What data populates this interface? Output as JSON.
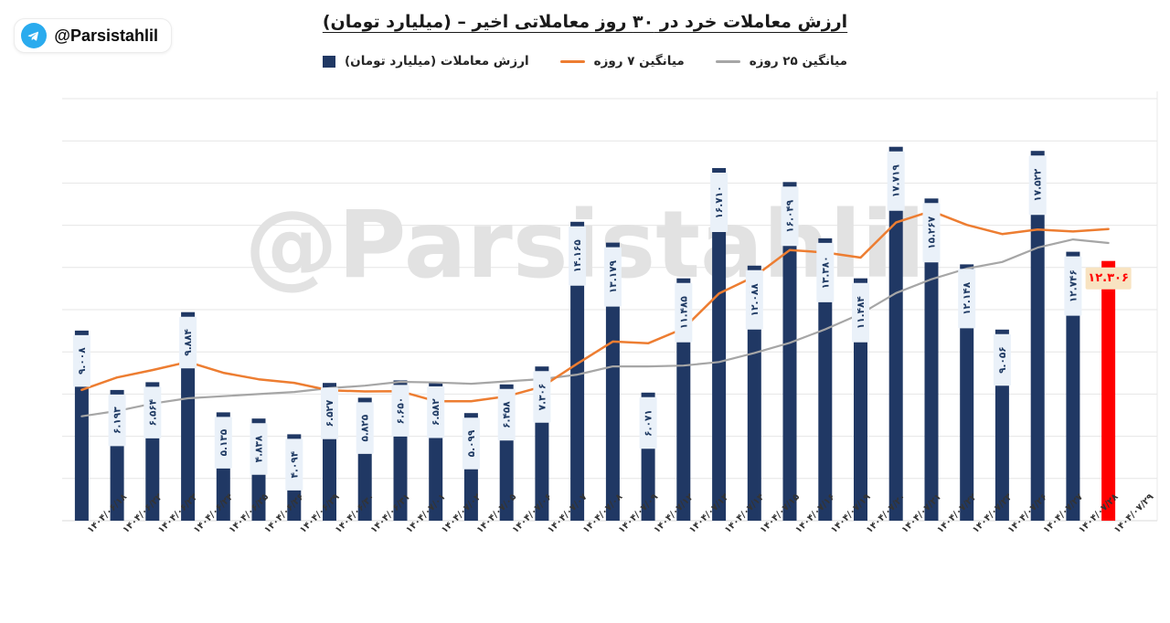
{
  "header": {
    "title": "ارزش معاملات خرد در ۳۰ روز معاملاتی اخیر – (میلیارد تومان)",
    "badge_handle": "@Parsistahlil"
  },
  "watermark": "@Parsistahlil",
  "legend": [
    {
      "label": "میانگین ۲۵ روزه",
      "marker": "line",
      "color": "#A6A6A6"
    },
    {
      "label": "میانگین ۷ روزه",
      "marker": "line",
      "color": "#ED7D31"
    },
    {
      "label": "ارزش معاملات (میلیارد تومان)",
      "marker": "square",
      "color": "#203864"
    }
  ],
  "chart_data": {
    "type": "bar",
    "title": "ارزش معاملات خرد در ۳۰ روز معاملاتی اخیر – (میلیارد تومان)",
    "xlabel": "",
    "ylabel": "",
    "ylim": [
      0,
      20000
    ],
    "grid_step": 2000,
    "grid": true,
    "legend_position": "top",
    "categories": [
      "۱۴۰۴/۰۶/۱۸",
      "۱۴۰۴/۰۶/۲۲",
      "۱۴۰۴/۰۶/۲۳",
      "۱۴۰۴/۰۶/۲۴",
      "۱۴۰۴/۰۶/۲۵",
      "۱۴۰۴/۰۶/۲۶",
      "۱۴۰۴/۰۶/۲۹",
      "۱۴۰۴/۰۶/۳۰",
      "۱۴۰۴/۰۶/۳۱",
      "۱۴۰۴/۰۷/۰۱",
      "۱۴۰۴/۰۷/۰۲",
      "۱۴۰۴/۰۷/۰۵",
      "۱۴۰۴/۰۷/۰۶",
      "۱۴۰۴/۰۷/۰۷",
      "۱۴۰۴/۰۷/۰۸",
      "۱۴۰۴/۰۷/۰۹",
      "۱۴۰۴/۰۷/۱۲",
      "۱۴۰۴/۰۷/۱۳",
      "۱۴۰۴/۰۷/۱۴",
      "۱۴۰۴/۰۷/۱۵",
      "۱۴۰۴/۰۷/۱۶",
      "۱۴۰۴/۰۷/۱۹",
      "۱۴۰۴/۰۷/۲۰",
      "۱۴۰۴/۰۷/۲۱",
      "۱۴۰۴/۰۷/۲۲",
      "۱۴۰۴/۰۷/۲۳",
      "۱۴۰۴/۰۷/۲۶",
      "۱۴۰۴/۰۷/۲۷",
      "۱۴۰۴/۰۷/۲۸",
      "۱۴۰۴/۰۷/۲۹"
    ],
    "series": [
      {
        "name": "ارزش معاملات (میلیارد تومان)",
        "type": "bar",
        "color": "#203864",
        "label_bg": "#EAF1F9",
        "label_color": "#1F3A63",
        "values": [
          9008,
          6193,
          6564,
          9884,
          5135,
          4838,
          4094,
          6527,
          5825,
          6650,
          6582,
          5099,
          6458,
          7306,
          14165,
          13179,
          6071,
          11485,
          16710,
          12088,
          16049,
          13380,
          11484,
          17719,
          15267,
          12148,
          9056,
          17522,
          12746,
          12306
        ],
        "labels": [
          "۹.۰۰۸",
          "۶.۱۹۳",
          "۶.۵۶۴",
          "۹.۸۸۴",
          "۵.۱۳۵",
          "۴.۸۳۸",
          "۴.۰۹۴",
          "۶.۵۲۷",
          "۵.۸۲۵",
          "۶.۶۵۰",
          "۶.۵۸۲",
          "۵.۰۹۹",
          "۶.۴۵۸",
          "۷.۳۰۶",
          "۱۴.۱۶۵",
          "۱۳.۱۷۹",
          "۶.۰۷۱",
          "۱۱.۴۸۵",
          "۱۶.۷۱۰",
          "۱۲.۰۸۸",
          "۱۶.۰۴۹",
          "۱۳.۳۸۰",
          "۱۱.۴۸۴",
          "۱۷.۷۱۹",
          "۱۵.۲۶۷",
          "۱۲.۱۴۸",
          "۹.۰۵۶",
          "۱۷.۵۲۲",
          "۱۲.۷۴۶",
          "۱۲.۳۰۶"
        ]
      },
      {
        "name": "میانگین ۷ روزه",
        "type": "line",
        "color": "#ED7D31",
        "values": [
          6200,
          6790,
          7140,
          7525,
          7010,
          6700,
          6531,
          6176,
          6124,
          6136,
          5664,
          5659,
          5891,
          6350,
          7441,
          8491,
          8409,
          9109,
          10768,
          11572,
          12821,
          12709,
          12467,
          14131,
          14671,
          14019,
          13586,
          13797,
          13706,
          13823
        ]
      },
      {
        "name": "میانگین ۲۵ روزه",
        "type": "line",
        "color": "#A6A6A6",
        "values": [
          4950,
          5200,
          5550,
          5800,
          5900,
          6000,
          6100,
          6280,
          6400,
          6580,
          6550,
          6490,
          6600,
          6710,
          6920,
          7310,
          7310,
          7350,
          7520,
          7950,
          8430,
          9070,
          9800,
          10790,
          11440,
          11950,
          12260,
          12940,
          13330,
          13160
        ]
      }
    ],
    "highlight_index": 29,
    "highlight": {
      "bar_color": "#FF0000",
      "label_bg": "#F8E3C1",
      "label_color": "#FF0000",
      "label": "۱۲.۳۰۶"
    }
  }
}
